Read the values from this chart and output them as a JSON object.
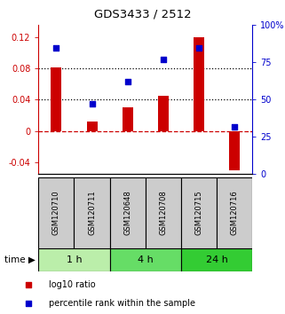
{
  "title": "GDS3433 / 2512",
  "samples": [
    "GSM120710",
    "GSM120711",
    "GSM120648",
    "GSM120708",
    "GSM120715",
    "GSM120716"
  ],
  "log10_ratio": [
    0.081,
    0.012,
    0.03,
    0.045,
    0.119,
    -0.05
  ],
  "percentile_rank": [
    85,
    47,
    62,
    77,
    85,
    32
  ],
  "time_groups": [
    {
      "label": "1 h",
      "start": 0,
      "end": 2,
      "color": "#bbeeaa"
    },
    {
      "label": "4 h",
      "start": 2,
      "end": 4,
      "color": "#66dd66"
    },
    {
      "label": "24 h",
      "start": 4,
      "end": 6,
      "color": "#33cc33"
    }
  ],
  "bar_color": "#cc0000",
  "dot_color": "#0000cc",
  "ylim_left": [
    -0.055,
    0.135
  ],
  "ylim_right": [
    0,
    100
  ],
  "yticks_left": [
    -0.04,
    0.0,
    0.04,
    0.08,
    0.12
  ],
  "ytick_labels_left": [
    "-0.04",
    "0",
    "0.04",
    "0.08",
    "0.12"
  ],
  "yticks_right": [
    0,
    25,
    50,
    75,
    100
  ],
  "ytick_labels_right": [
    "0",
    "25",
    "50",
    "75",
    "100%"
  ],
  "hlines_dotted": [
    0.08,
    0.04
  ],
  "hlines_dashed_color": "#cc0000",
  "bg_color_fig": "#ffffff",
  "sample_box_color": "#cccccc",
  "legend_items": [
    {
      "label": "log10 ratio",
      "color": "#cc0000"
    },
    {
      "label": "percentile rank within the sample",
      "color": "#0000cc"
    }
  ],
  "bar_width": 0.3
}
